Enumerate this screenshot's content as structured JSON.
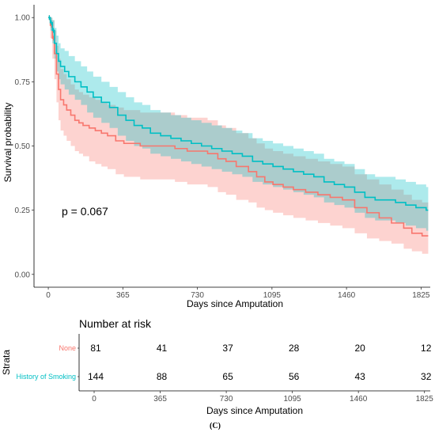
{
  "chart_data": {
    "type": "line",
    "subtype": "kaplan-meier",
    "ylabel": "Survival probability",
    "xlabel": "Days since Amputation",
    "x_ticks": [
      0,
      365,
      730,
      1095,
      1460,
      1825
    ],
    "y_ticks": [
      "0.00",
      "0.25",
      "0.50",
      "0.75",
      "1.00"
    ],
    "xlim": [
      -70,
      1870
    ],
    "ylim": [
      -0.05,
      1.05
    ],
    "grid": false,
    "annotation": "p = 0.067",
    "series": [
      {
        "name": "None",
        "color": "#F8766D",
        "ci_fill": "#F8766D",
        "x": [
          0,
          10,
          20,
          30,
          40,
          50,
          60,
          75,
          90,
          110,
          130,
          150,
          170,
          200,
          230,
          260,
          290,
          330,
          370,
          410,
          450,
          500,
          560,
          620,
          680,
          730,
          780,
          830,
          870,
          920,
          980,
          1020,
          1060,
          1100,
          1150,
          1200,
          1260,
          1320,
          1380,
          1440,
          1500,
          1560,
          1620,
          1680,
          1740,
          1780,
          1830,
          1860
        ],
        "y": [
          1.0,
          0.97,
          0.92,
          0.86,
          0.78,
          0.72,
          0.68,
          0.66,
          0.64,
          0.62,
          0.6,
          0.59,
          0.58,
          0.57,
          0.56,
          0.55,
          0.54,
          0.52,
          0.51,
          0.51,
          0.5,
          0.5,
          0.5,
          0.49,
          0.48,
          0.48,
          0.47,
          0.45,
          0.44,
          0.42,
          0.4,
          0.38,
          0.36,
          0.35,
          0.34,
          0.33,
          0.32,
          0.31,
          0.3,
          0.29,
          0.26,
          0.24,
          0.22,
          0.2,
          0.18,
          0.16,
          0.15,
          0.15
        ],
        "lower": [
          1.0,
          0.92,
          0.84,
          0.76,
          0.67,
          0.6,
          0.56,
          0.54,
          0.52,
          0.5,
          0.48,
          0.47,
          0.46,
          0.44,
          0.43,
          0.42,
          0.41,
          0.39,
          0.38,
          0.38,
          0.37,
          0.37,
          0.37,
          0.36,
          0.35,
          0.35,
          0.34,
          0.32,
          0.31,
          0.29,
          0.28,
          0.26,
          0.25,
          0.24,
          0.23,
          0.22,
          0.21,
          0.2,
          0.19,
          0.18,
          0.16,
          0.14,
          0.13,
          0.12,
          0.1,
          0.09,
          0.08,
          0.08
        ],
        "upper": [
          1.0,
          1.0,
          0.99,
          0.95,
          0.89,
          0.84,
          0.8,
          0.78,
          0.76,
          0.74,
          0.72,
          0.71,
          0.7,
          0.69,
          0.68,
          0.67,
          0.66,
          0.65,
          0.64,
          0.64,
          0.63,
          0.63,
          0.63,
          0.62,
          0.61,
          0.61,
          0.6,
          0.58,
          0.57,
          0.55,
          0.53,
          0.51,
          0.49,
          0.48,
          0.47,
          0.46,
          0.45,
          0.44,
          0.43,
          0.42,
          0.39,
          0.37,
          0.35,
          0.33,
          0.31,
          0.29,
          0.28,
          0.28
        ]
      },
      {
        "name": "History of Smoking",
        "color": "#00BFC4",
        "ci_fill": "#00BFC4",
        "x": [
          0,
          10,
          20,
          30,
          40,
          50,
          60,
          80,
          100,
          130,
          160,
          190,
          220,
          260,
          300,
          340,
          380,
          420,
          460,
          500,
          550,
          600,
          650,
          700,
          750,
          800,
          850,
          900,
          950,
          1000,
          1050,
          1100,
          1150,
          1200,
          1250,
          1300,
          1350,
          1400,
          1450,
          1500,
          1550,
          1600,
          1650,
          1700,
          1750,
          1800,
          1850,
          1860
        ],
        "y": [
          1.0,
          0.98,
          0.95,
          0.9,
          0.86,
          0.83,
          0.81,
          0.79,
          0.77,
          0.75,
          0.73,
          0.71,
          0.69,
          0.67,
          0.65,
          0.62,
          0.6,
          0.58,
          0.57,
          0.55,
          0.54,
          0.53,
          0.52,
          0.51,
          0.5,
          0.49,
          0.48,
          0.47,
          0.46,
          0.44,
          0.43,
          0.42,
          0.41,
          0.4,
          0.39,
          0.38,
          0.36,
          0.35,
          0.34,
          0.32,
          0.3,
          0.29,
          0.29,
          0.28,
          0.27,
          0.26,
          0.25,
          0.25
        ],
        "lower": [
          1.0,
          0.95,
          0.9,
          0.84,
          0.79,
          0.76,
          0.74,
          0.72,
          0.7,
          0.68,
          0.66,
          0.63,
          0.61,
          0.59,
          0.57,
          0.54,
          0.52,
          0.5,
          0.49,
          0.47,
          0.46,
          0.45,
          0.44,
          0.43,
          0.42,
          0.41,
          0.4,
          0.39,
          0.38,
          0.36,
          0.35,
          0.34,
          0.33,
          0.32,
          0.31,
          0.3,
          0.28,
          0.27,
          0.26,
          0.24,
          0.22,
          0.21,
          0.21,
          0.2,
          0.19,
          0.18,
          0.17,
          0.17
        ],
        "upper": [
          1.0,
          1.0,
          0.99,
          0.96,
          0.93,
          0.9,
          0.88,
          0.87,
          0.85,
          0.83,
          0.81,
          0.79,
          0.77,
          0.75,
          0.73,
          0.71,
          0.69,
          0.67,
          0.66,
          0.64,
          0.63,
          0.62,
          0.61,
          0.6,
          0.59,
          0.58,
          0.57,
          0.56,
          0.55,
          0.53,
          0.52,
          0.51,
          0.5,
          0.49,
          0.48,
          0.47,
          0.45,
          0.44,
          0.43,
          0.41,
          0.39,
          0.38,
          0.38,
          0.37,
          0.36,
          0.35,
          0.34,
          0.34
        ]
      }
    ]
  },
  "risk_table": {
    "title": "Number at risk",
    "ylabel": "Strata",
    "xlabel": "Days since Amputation",
    "x_ticks": [
      0,
      365,
      730,
      1095,
      1460,
      1825
    ],
    "rows": [
      {
        "label": "None",
        "color": "#F8766D",
        "counts": [
          81,
          41,
          37,
          28,
          20,
          12
        ]
      },
      {
        "label": "History of Smoking",
        "color": "#00BFC4",
        "counts": [
          144,
          88,
          65,
          56,
          43,
          32
        ]
      }
    ]
  },
  "caption": "(C)"
}
